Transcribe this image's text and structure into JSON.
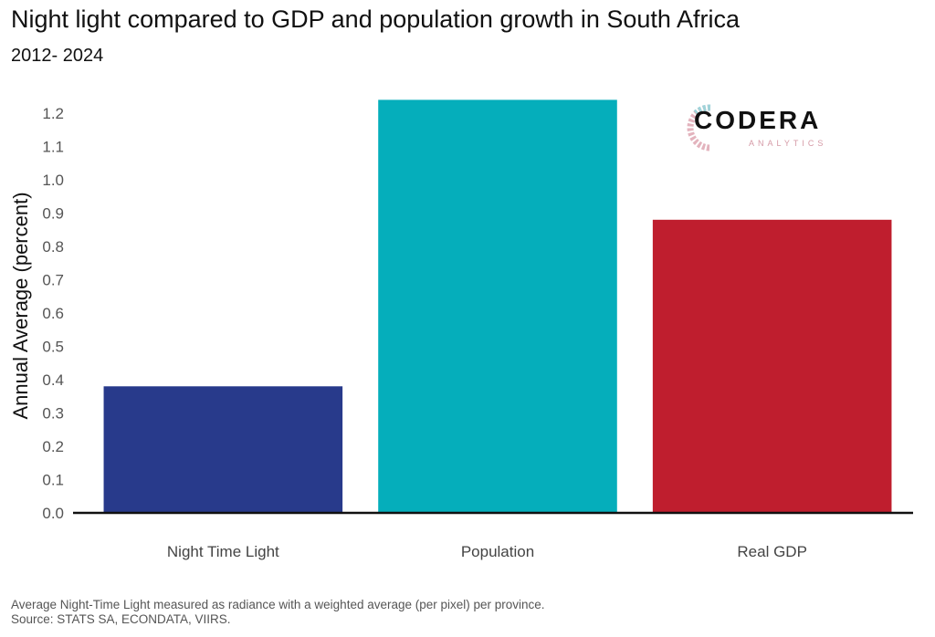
{
  "header": {
    "title": "Night light compared to GDP and population growth in South Africa",
    "subtitle": "2012- 2024"
  },
  "logo": {
    "name": "CODERA",
    "tagline": "ANALYTICS"
  },
  "footnote": {
    "line1": "Average Night-Time Light measured as radiance with a weighted average (per pixel) per province.",
    "line2": "Source: STATS SA, ECONDATA, VIIRS."
  },
  "chart_data": {
    "type": "bar",
    "title": "Night light compared to GDP and population growth in South Africa",
    "subtitle": "2012- 2024",
    "xlabel": "",
    "ylabel": "Annual Average (percent)",
    "categories": [
      "Night Time Light",
      "Population",
      "Real GDP"
    ],
    "values": [
      0.38,
      1.24,
      0.88
    ],
    "colors": [
      "#283a8b",
      "#05aebb",
      "#bf1e2e"
    ],
    "ylim": [
      0,
      1.2
    ],
    "yticks": [
      0.0,
      0.1,
      0.2,
      0.3,
      0.4,
      0.5,
      0.6,
      0.7,
      0.8,
      0.9,
      1.0,
      1.1,
      1.2
    ],
    "ytick_labels": [
      "0.0",
      "0.1",
      "0.2",
      "0.3",
      "0.4",
      "0.5",
      "0.6",
      "0.7",
      "0.8",
      "0.9",
      "1.0",
      "1.1",
      "1.2"
    ],
    "grid": false,
    "legend": "none"
  }
}
